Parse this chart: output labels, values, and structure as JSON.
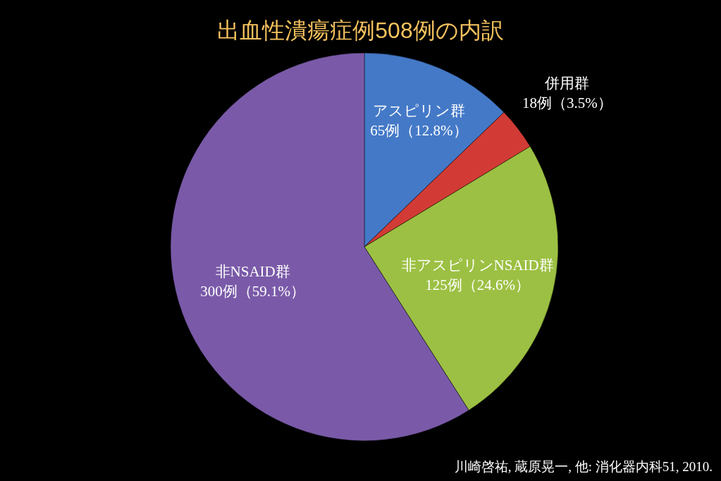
{
  "chart_data": {
    "type": "pie",
    "title": "出血性潰瘍症例508例の内訳",
    "categories": [
      "アスピリン群",
      "併用群",
      "非アスピリンNSAID群",
      "非NSAID群"
    ],
    "values": [
      65,
      18,
      125,
      300
    ],
    "value_labels": [
      "65例（12.8%）",
      "18例（3.5%）",
      "125例（24.6%）",
      "300例（59.1%）"
    ],
    "colors": [
      "#4479c7",
      "#d23b35",
      "#9cc043",
      "#7a5aa8"
    ],
    "annotations": [
      "川崎啓祐, 蔵原晃一, 他: 消化器内科51, 2010."
    ]
  }
}
